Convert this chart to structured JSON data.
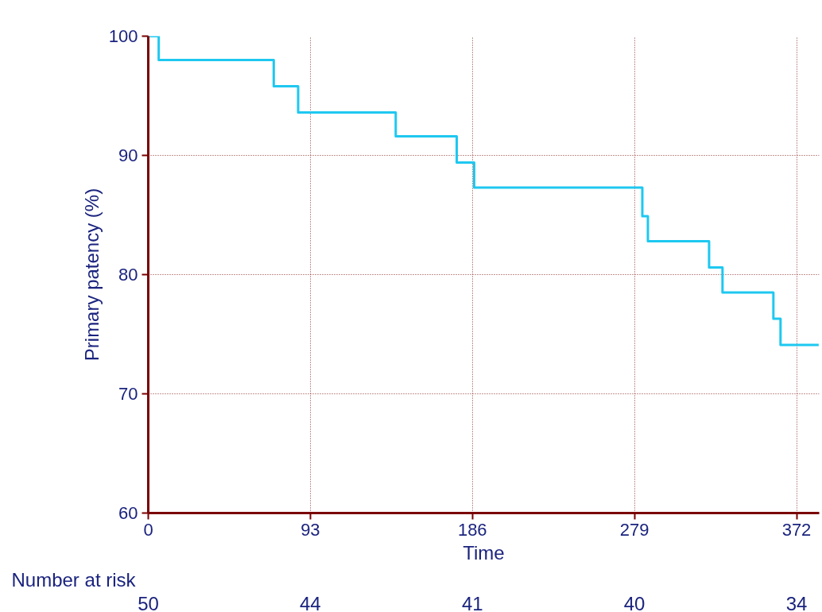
{
  "chart_data": {
    "type": "step",
    "xlabel": "Time",
    "ylabel": "Primary patency (%)",
    "x": [
      0,
      6,
      72,
      86,
      142,
      177,
      187,
      283.5,
      286.7,
      321.8,
      329.5,
      358.7,
      362.8,
      384.7
    ],
    "series": [
      {
        "color": "#1ec8f0",
        "values": [
          100,
          98,
          95.8,
          93.6,
          91.6,
          89.4,
          87.3,
          84.9,
          82.8,
          80.6,
          78.5,
          76.3,
          74.1,
          74.1
        ]
      }
    ],
    "xlim": [
      0,
      385
    ],
    "ylim": [
      60,
      100
    ],
    "xticks": [
      0,
      93,
      186,
      279,
      372
    ],
    "yticks": [
      60,
      70,
      80,
      90,
      100
    ],
    "grid": true,
    "line_style": "solid",
    "annotations": [
      "Number at risk",
      "50",
      "44",
      "41",
      "40",
      "34"
    ]
  }
}
